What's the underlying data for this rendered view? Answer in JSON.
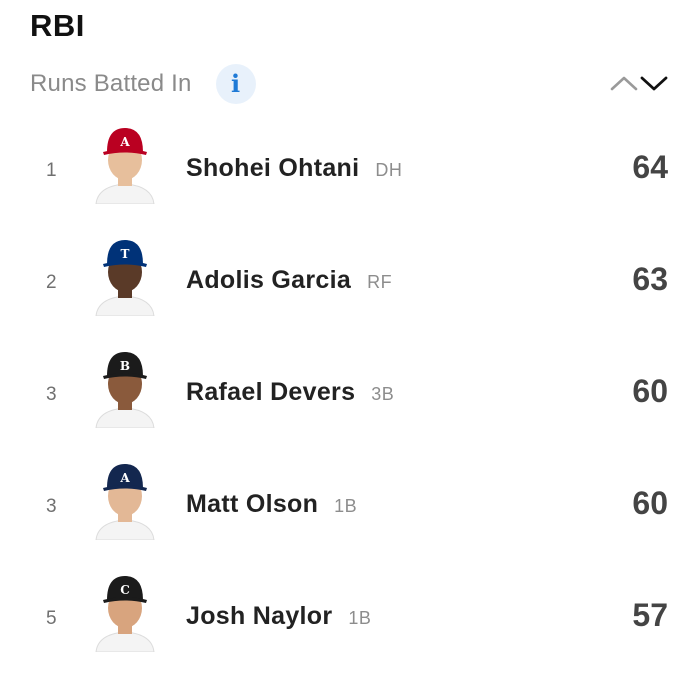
{
  "header": {
    "title": "RBI",
    "subtitle": "Runs Batted In",
    "info_icon": "info-icon",
    "sort_icons": [
      "chevron-up-icon",
      "chevron-down-icon"
    ]
  },
  "colors": {
    "accent": "#1f7ad6",
    "info_bg": "#e8f1fb",
    "muted_text": "#8a8a8a"
  },
  "leaders": [
    {
      "rank": "1",
      "name": "Shohei Ohtani",
      "position": "DH",
      "value": "64",
      "cap_color": "#ba0021",
      "cap_logo": "A",
      "skin": "#e7bf9c"
    },
    {
      "rank": "2",
      "name": "Adolis Garcia",
      "position": "RF",
      "value": "63",
      "cap_color": "#003278",
      "cap_logo": "T",
      "skin": "#5a3a28"
    },
    {
      "rank": "3",
      "name": "Rafael Devers",
      "position": "3B",
      "value": "60",
      "cap_color": "#1b1b1b",
      "cap_logo": "B",
      "skin": "#8a5a3c"
    },
    {
      "rank": "3",
      "name": "Matt Olson",
      "position": "1B",
      "value": "60",
      "cap_color": "#13274f",
      "cap_logo": "A",
      "skin": "#e3b896"
    },
    {
      "rank": "5",
      "name": "Josh Naylor",
      "position": "1B",
      "value": "57",
      "cap_color": "#1b1b1b",
      "cap_logo": "C",
      "skin": "#d8a47e"
    }
  ]
}
